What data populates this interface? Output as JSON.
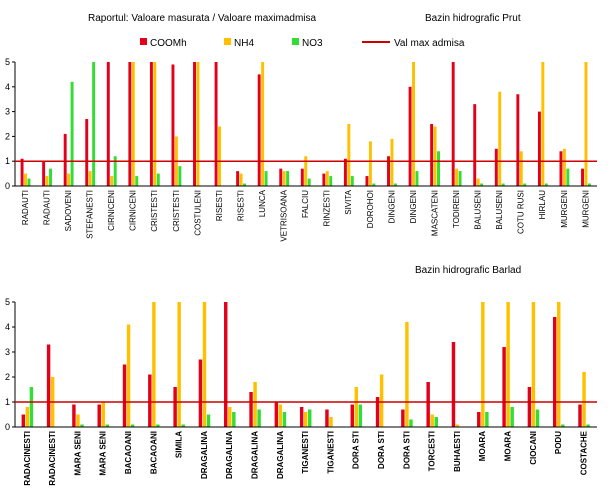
{
  "title": "Raportul:  Valoare masurata / Valoare maximadmisa",
  "legend": [
    {
      "name": "COOMh",
      "color": "#e3001b"
    },
    {
      "name": "NH4",
      "color": "#ffc000"
    },
    {
      "name": "NO3",
      "color": "#33dd33"
    },
    {
      "name": "Val max admisa",
      "color": "#cc0000"
    }
  ],
  "chart_data": [
    {
      "type": "bar",
      "title": "Bazin hidrografic Prut",
      "categories": [
        "RADAUTI",
        "RADAUTI",
        "SADOVENI",
        "STEFANESTI",
        "CIRNICENI",
        "CIRNICENI",
        "CRISTESTI",
        "CRISTESTI",
        "COSTULENI",
        "RISESTI",
        "RISESTI",
        "LUNCA",
        "VETRISOANA",
        "FALCIU",
        "RINZESTI",
        "SIVITA",
        "DOROHOI",
        "DINGENI",
        "DINGENI",
        "MASCATENI",
        "TODIRENI",
        "BALUSENI",
        "BALUSENI",
        "COTU RUSI",
        "HIRLAU",
        "MURGENI",
        "MURGENI"
      ],
      "series": [
        {
          "values": [
            1.1,
            1.0,
            2.1,
            2.7,
            5,
            5,
            5,
            4.9,
            5,
            5,
            0.6,
            4.5,
            0.7,
            0.7,
            0.5,
            1.1,
            0.4,
            1.2,
            4.0,
            2.5,
            5,
            3.3,
            1.5,
            3.7,
            3.0,
            1.4,
            0.7
          ]
        },
        {
          "values": [
            0.5,
            0.4,
            0.5,
            0.6,
            0.4,
            5,
            5,
            2,
            5,
            2.4,
            0.5,
            5,
            0.6,
            1.2,
            0.6,
            2.5,
            1.8,
            1.9,
            5,
            2.4,
            0.7,
            0.3,
            3.8,
            1.4,
            5,
            1.5,
            5
          ]
        },
        {
          "values": [
            0.3,
            0.7,
            4.2,
            5,
            1.2,
            0.4,
            0.5,
            0.8,
            0,
            0,
            0.1,
            0.6,
            0.6,
            0.3,
            0.4,
            0.4,
            0.1,
            0.1,
            0.6,
            1.4,
            0.6,
            0.1,
            0.1,
            0.1,
            0.1,
            0.7,
            0.1
          ]
        }
      ],
      "ylim": [
        0,
        5
      ],
      "yticks": [
        0,
        1,
        2,
        3,
        4,
        5
      ],
      "threshold": 1
    },
    {
      "type": "bar",
      "title": "Bazin hidrografic  Barlad",
      "categories": [
        "RADACINESTI",
        "RADACINESTI",
        "MARA SENI",
        "MARA SENI",
        "BACAOANI",
        "BACAOANI",
        "SIMILA",
        "DRAGALINA",
        "DRAGALINA",
        "DRAGALINA",
        "DRAGALINA",
        "TIGANESTI",
        "TIGANESTI",
        "DORA STI",
        "DORA STI",
        "DORA STI",
        "TORCESTI",
        "BUHAESTI",
        "MOARA",
        "MOARA",
        "CIOCANI",
        "PODU",
        "COSTACHE"
      ],
      "series": [
        {
          "values": [
            0.5,
            3.3,
            0.9,
            0.9,
            2.5,
            2.1,
            1.6,
            2.7,
            5,
            1.4,
            1.0,
            0.8,
            0.7,
            0.9,
            1.2,
            0.7,
            1.8,
            3.4,
            0.6,
            3.2,
            1.6,
            4.4,
            0.9
          ]
        },
        {
          "values": [
            0.8,
            2.0,
            0.5,
            1.0,
            4.1,
            5,
            5,
            5,
            0.8,
            1.8,
            0.9,
            0.6,
            0.4,
            1.6,
            2.1,
            4.2,
            0.5,
            0.1,
            5,
            5,
            5,
            5,
            2.2
          ]
        },
        {
          "values": [
            1.6,
            0,
            0.1,
            0.1,
            0.1,
            0.1,
            0.1,
            0.5,
            0.6,
            0.7,
            0.6,
            0.7,
            0,
            0.9,
            0,
            0.3,
            0.4,
            0,
            0.6,
            0.8,
            0.7,
            0.1,
            0.1
          ]
        }
      ],
      "ylim": [
        0,
        5
      ],
      "yticks": [
        0,
        1,
        2,
        3,
        4,
        5
      ],
      "threshold": 1
    }
  ]
}
